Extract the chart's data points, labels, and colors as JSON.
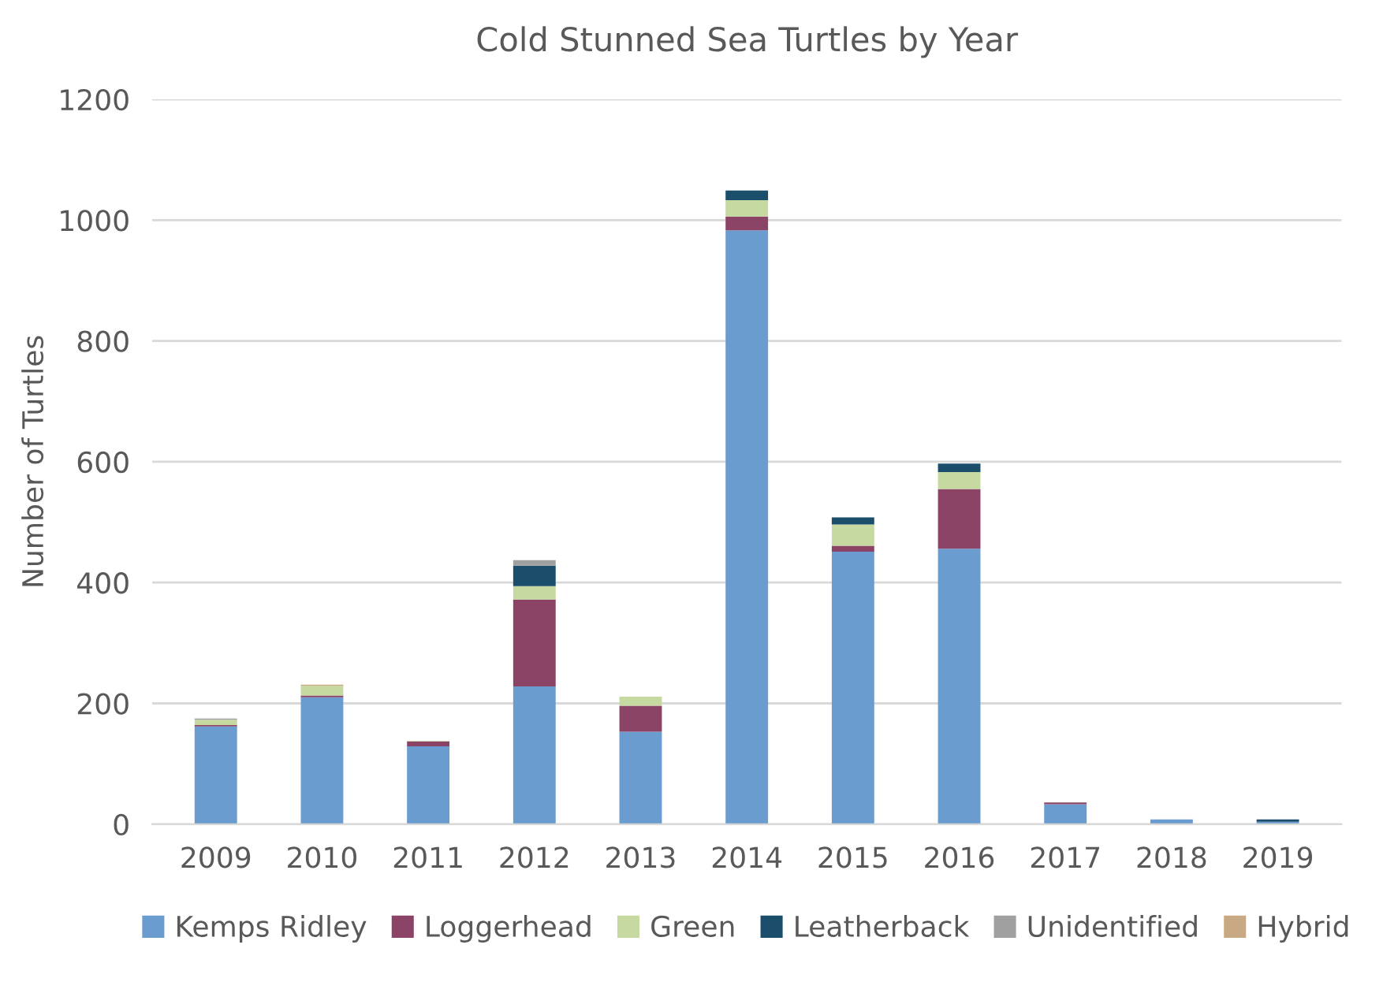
{
  "chart_data": {
    "type": "bar",
    "title": "Cold Stunned Sea Turtles by Year",
    "ylabel": "Number of Turtles",
    "categories": [
      "2009",
      "2010",
      "2011",
      "2012",
      "2013",
      "2014",
      "2015",
      "2016",
      "2017",
      "2018",
      "2019"
    ],
    "stacked": true,
    "series": [
      {
        "name": "Kemps Ridley",
        "color": "#6a9ccf",
        "values": [
          162,
          210,
          129,
          228,
          153,
          983,
          451,
          456,
          33,
          8,
          4
        ]
      },
      {
        "name": "Loggerhead",
        "color": "#8b4466",
        "values": [
          2,
          3,
          8,
          144,
          43,
          23,
          10,
          99,
          3,
          null,
          null
        ]
      },
      {
        "name": "Green",
        "color": "#c5d9a0",
        "values": [
          9,
          16,
          1,
          22,
          15,
          27,
          35,
          28,
          null,
          null,
          null
        ]
      },
      {
        "name": "Leatherback",
        "color": "#1a4e6b",
        "values": [
          null,
          null,
          null,
          34,
          null,
          16,
          12,
          14,
          null,
          null,
          4
        ]
      },
      {
        "name": "Unidentified",
        "color": "#a0a0a0",
        "values": [
          2,
          null,
          null,
          9,
          null,
          null,
          null,
          null,
          null,
          null,
          null
        ]
      },
      {
        "name": "Hybrid",
        "color": "#c9a983",
        "values": [
          null,
          2,
          null,
          null,
          null,
          null,
          null,
          null,
          null,
          null,
          null
        ]
      }
    ],
    "ylim": [
      0,
      1200
    ],
    "yticks": [
      0,
      200,
      400,
      600,
      800,
      1000,
      1200
    ],
    "grid": "y",
    "legend": "bottom"
  }
}
